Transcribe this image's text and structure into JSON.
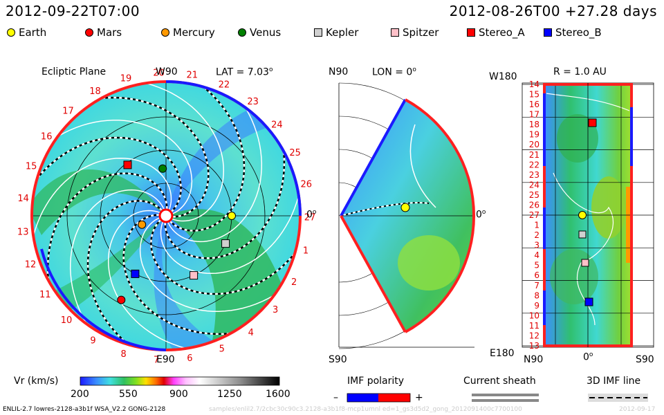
{
  "header": {
    "left_time": "2012-09-22T07:00",
    "right_time": "2012-08-26T00 +27.28 days"
  },
  "legend": [
    {
      "label": "Earth",
      "color": "#ffff00",
      "shape": "circle"
    },
    {
      "label": "Mars",
      "color": "#ff0000",
      "shape": "circle"
    },
    {
      "label": "Mercury",
      "color": "#ff9900",
      "shape": "circle"
    },
    {
      "label": "Venus",
      "color": "#008000",
      "shape": "circle"
    },
    {
      "label": "Kepler",
      "color": "#d0d0d0",
      "shape": "square"
    },
    {
      "label": "Spitzer",
      "color": "#ffc0c8",
      "shape": "square"
    },
    {
      "label": "Stereo_A",
      "color": "#ff0000",
      "shape": "square"
    },
    {
      "label": "Stereo_B",
      "color": "#0000ff",
      "shape": "square"
    }
  ],
  "panels": {
    "ecliptic": {
      "title": "Ecliptic Plane",
      "top_label": "W90",
      "bottom_label": "E90",
      "lat_label": "LAT = 7.03",
      "lat_degree": "o",
      "right_label": "0",
      "right_degree": "o",
      "sector_labels": [
        "20",
        "21",
        "22",
        "23",
        "24",
        "25",
        "26",
        "27",
        "1",
        "2",
        "3",
        "4",
        "5",
        "6",
        "7",
        "8",
        "9",
        "10",
        "11",
        "12",
        "13",
        "14",
        "15",
        "16",
        "17",
        "18",
        "19"
      ]
    },
    "meridional": {
      "top_label": "N90",
      "bottom_label": "S90",
      "lon_label": "LON = 0",
      "lon_degree": "o",
      "right_label": "0",
      "right_degree": "o"
    },
    "radial": {
      "title": "R = 1.0 AU",
      "top_left_label": "W180",
      "bottom_left_label": "E180",
      "x_labels": [
        "N90",
        "0",
        "S90"
      ],
      "x_degree": "o",
      "y_labels": [
        "14",
        "15",
        "16",
        "17",
        "18",
        "19",
        "20",
        "21",
        "22",
        "23",
        "24",
        "25",
        "26",
        "27",
        "1",
        "2",
        "3",
        "4",
        "5",
        "6",
        "7",
        "8",
        "9",
        "10",
        "11",
        "12",
        "13"
      ]
    }
  },
  "colorbar": {
    "label": "Vr (km/s)",
    "ticks": [
      "200",
      "550",
      "900",
      "1250",
      "1600"
    ]
  },
  "imf_polarity": {
    "title": "IMF polarity",
    "minus": "–",
    "plus": "+",
    "neg_color": "#0000ff",
    "pos_color": "#ff0000"
  },
  "current_sheath": {
    "title": "Current sheath"
  },
  "imf_line": {
    "title": "3D IMF line"
  },
  "footer": {
    "model": "ENLIL-2.7 lowres-2128-a3b1f WSA_V2.2 GONG-2128",
    "path": "samples/enlil2.7/2cbc30c90c3.2128-a3b1f8-mcp1umnl ed=1_gs3d5d2_gong_2012091400c7700100",
    "right": "2012-09-17"
  },
  "chart_data": {
    "type": "heatmap",
    "title": "",
    "colorbar": {
      "label": "Vr (km/s)",
      "range": [
        200,
        1600
      ],
      "ticks": [
        200,
        550,
        900,
        1250,
        1600
      ]
    },
    "bodies": [
      {
        "name": "Earth",
        "panel": "ecliptic",
        "angle_deg": 0,
        "r_au": 1.0
      },
      {
        "name": "Mars",
        "panel": "ecliptic",
        "angle_deg": -118,
        "r_au": 1.45
      },
      {
        "name": "Mercury",
        "panel": "ecliptic",
        "angle_deg": -160,
        "r_au": 0.39
      },
      {
        "name": "Venus",
        "panel": "ecliptic",
        "angle_deg": 94,
        "r_au": 0.72
      },
      {
        "name": "Kepler",
        "panel": "ecliptic",
        "angle_deg": -25,
        "r_au": 1.0
      },
      {
        "name": "Spitzer",
        "panel": "ecliptic",
        "angle_deg": -65,
        "r_au": 1.0
      },
      {
        "name": "Stereo_A",
        "panel": "ecliptic",
        "angle_deg": 127,
        "r_au": 0.97
      },
      {
        "name": "Stereo_B",
        "panel": "ecliptic",
        "angle_deg": -118,
        "r_au": 1.0
      }
    ]
  }
}
